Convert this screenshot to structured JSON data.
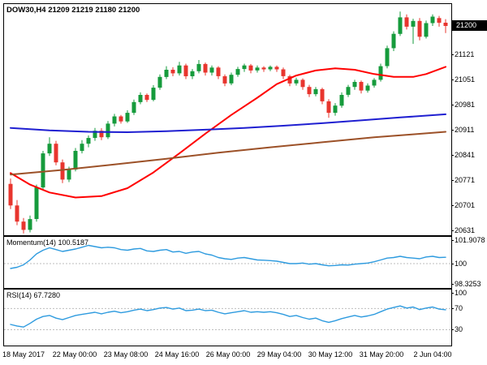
{
  "window": {
    "title": "DOW30,H4 21209 21219 21180 21200",
    "symbol": "DOW30",
    "timeframe": "H4",
    "ohlc": {
      "open": "21209",
      "high": "21219",
      "low": "21180",
      "close": "21200"
    }
  },
  "price_scale": {
    "ticks": [
      "21121",
      "21051",
      "20981",
      "20911",
      "20841",
      "20771",
      "20701",
      "20631"
    ],
    "current": "21200",
    "badge_bg": "#000000",
    "badge_text": "#ffffff"
  },
  "momentum_panel": {
    "label": "Momentum(14) 100.5187"
  },
  "rsi_panel": {
    "label": "RSI(14) 67.7280"
  },
  "chart_data": [
    {
      "type": "candlestick",
      "name": "price",
      "title": "DOW30,H4",
      "ylim": [
        20617,
        21261
      ],
      "y_ticks": [
        21121,
        21051,
        20981,
        20911,
        20841,
        20771,
        20701,
        20631
      ],
      "up_color": "#169b3c",
      "down_color": "#e8352e",
      "x_labels": [
        "18 May 2017",
        "22 May 00:00",
        "23 May 08:00",
        "24 May 16:00",
        "26 May 00:00",
        "29 May 04:00",
        "30 May 12:00",
        "31 May 20:00",
        "2 Jun 04:00"
      ],
      "candles_ohlc": [
        [
          20760,
          20775,
          20690,
          20700
        ],
        [
          20700,
          20715,
          20645,
          20655
        ],
        [
          20655,
          20665,
          20622,
          20632
        ],
        [
          20632,
          20672,
          20625,
          20662
        ],
        [
          20662,
          20758,
          20655,
          20750
        ],
        [
          20750,
          20852,
          20745,
          20845
        ],
        [
          20845,
          20890,
          20838,
          20872
        ],
        [
          20872,
          20880,
          20812,
          20820
        ],
        [
          20820,
          20828,
          20762,
          20772
        ],
        [
          20772,
          20808,
          20765,
          20800
        ],
        [
          20800,
          20860,
          20795,
          20852
        ],
        [
          20852,
          20882,
          20845,
          20872
        ],
        [
          20872,
          20895,
          20862,
          20888
        ],
        [
          20888,
          20916,
          20880,
          20908
        ],
        [
          20908,
          20915,
          20882,
          20890
        ],
        [
          20890,
          20935,
          20885,
          20928
        ],
        [
          20928,
          20955,
          20920,
          20948
        ],
        [
          20948,
          20952,
          20928,
          20934
        ],
        [
          20934,
          20965,
          20930,
          20958
        ],
        [
          20958,
          20995,
          20952,
          20988
        ],
        [
          20988,
          21015,
          20982,
          21008
        ],
        [
          21008,
          21012,
          20988,
          20994
        ],
        [
          20994,
          21035,
          20990,
          21028
        ],
        [
          21028,
          21065,
          21022,
          21058
        ],
        [
          21058,
          21088,
          21052,
          21078
        ],
        [
          21078,
          21085,
          21060,
          21068
        ],
        [
          21068,
          21100,
          21062,
          21090
        ],
        [
          21090,
          21095,
          21052,
          21060
        ],
        [
          21060,
          21080,
          21052,
          21074
        ],
        [
          21074,
          21105,
          21068,
          21094
        ],
        [
          21094,
          21098,
          21062,
          21070
        ],
        [
          21070,
          21090,
          21062,
          21084
        ],
        [
          21084,
          21088,
          21052,
          21060
        ],
        [
          21060,
          21065,
          21032,
          21040
        ],
        [
          21040,
          21070,
          21035,
          21064
        ],
        [
          21064,
          21086,
          21058,
          21080
        ],
        [
          21080,
          21095,
          21072,
          21090
        ],
        [
          21090,
          21094,
          21068,
          21076
        ],
        [
          21076,
          21090,
          21070,
          21084
        ],
        [
          21084,
          21088,
          21072,
          21079
        ],
        [
          21079,
          21090,
          21074,
          21086
        ],
        [
          21086,
          21090,
          21072,
          21079
        ],
        [
          21079,
          21084,
          21052,
          21060
        ],
        [
          21060,
          21064,
          21032,
          21040
        ],
        [
          21040,
          21056,
          21034,
          21050
        ],
        [
          21050,
          21054,
          21022,
          21030
        ],
        [
          21030,
          21036,
          21002,
          21010
        ],
        [
          21010,
          21030,
          21004,
          21024
        ],
        [
          21024,
          21028,
          20982,
          20990
        ],
        [
          20990,
          20996,
          20944,
          20958
        ],
        [
          20958,
          20985,
          20950,
          20978
        ],
        [
          20978,
          21015,
          20972,
          21008
        ],
        [
          21008,
          21036,
          21002,
          21030
        ],
        [
          21030,
          21050,
          21022,
          21044
        ],
        [
          21044,
          21048,
          21012,
          21020
        ],
        [
          21020,
          21040,
          21014,
          21034
        ],
        [
          21034,
          21055,
          21028,
          21050
        ],
        [
          21050,
          21095,
          21045,
          21088
        ],
        [
          21088,
          21145,
          21082,
          21138
        ],
        [
          21138,
          21185,
          21130,
          21178
        ],
        [
          21178,
          21240,
          21172,
          21224
        ],
        [
          21224,
          21232,
          21190,
          21198
        ],
        [
          21198,
          21220,
          21150,
          21214
        ],
        [
          21214,
          21222,
          21160,
          21170
        ],
        [
          21170,
          21215,
          21165,
          21208
        ],
        [
          21208,
          21232,
          21200,
          21226
        ],
        [
          21222,
          21228,
          21198,
          21209
        ],
        [
          21209,
          21219,
          21180,
          21200
        ]
      ],
      "overlays": [
        {
          "name": "ma-fast-red",
          "color": "#ff0000",
          "points": [
            [
              0,
              20790
            ],
            [
              3,
              20758
            ],
            [
              6,
              20736
            ],
            [
              10,
              20722
            ],
            [
              14,
              20726
            ],
            [
              18,
              20748
            ],
            [
              22,
              20792
            ],
            [
              26,
              20845
            ],
            [
              30,
              20900
            ],
            [
              34,
              20952
            ],
            [
              38,
              21000
            ],
            [
              41,
              21038
            ],
            [
              44,
              21062
            ],
            [
              47,
              21076
            ],
            [
              50,
              21082
            ],
            [
              53,
              21078
            ],
            [
              56,
              21066
            ],
            [
              59,
              21058
            ],
            [
              62,
              21058
            ],
            [
              64,
              21066
            ],
            [
              67,
              21086
            ]
          ]
        },
        {
          "name": "ma-slow-blue",
          "color": "#1f1fd1",
          "points": [
            [
              0,
              20916
            ],
            [
              6,
              20909
            ],
            [
              12,
              20905
            ],
            [
              18,
              20904
            ],
            [
              24,
              20907
            ],
            [
              30,
              20911
            ],
            [
              36,
              20916
            ],
            [
              42,
              20922
            ],
            [
              48,
              20929
            ],
            [
              54,
              20937
            ],
            [
              60,
              20945
            ],
            [
              67,
              20954
            ]
          ]
        },
        {
          "name": "ma-long-brown",
          "color": "#9c5128",
          "points": [
            [
              0,
              20786
            ],
            [
              8,
              20799
            ],
            [
              16,
              20814
            ],
            [
              24,
              20830
            ],
            [
              32,
              20847
            ],
            [
              40,
              20862
            ],
            [
              48,
              20876
            ],
            [
              56,
              20890
            ],
            [
              62,
              20898
            ],
            [
              67,
              20905
            ]
          ]
        }
      ]
    },
    {
      "type": "line",
      "name": "momentum",
      "title": "Momentum(14)",
      "current_value": "100.5187",
      "color": "#2e9bdf",
      "ylim": [
        98.0,
        102.2
      ],
      "y_ticks": [
        "101.9078",
        "100",
        "98.3253"
      ],
      "level_lines": [
        100
      ],
      "points": [
        [
          0,
          99.6
        ],
        [
          1,
          99.7
        ],
        [
          2,
          99.9
        ],
        [
          3,
          100.3
        ],
        [
          4,
          100.8
        ],
        [
          5,
          101.1
        ],
        [
          6,
          101.3
        ],
        [
          7,
          101.15
        ],
        [
          8,
          101.0
        ],
        [
          9,
          101.1
        ],
        [
          10,
          101.2
        ],
        [
          11,
          101.35
        ],
        [
          12,
          101.5
        ],
        [
          13,
          101.4
        ],
        [
          14,
          101.3
        ],
        [
          15,
          101.35
        ],
        [
          16,
          101.3
        ],
        [
          17,
          101.15
        ],
        [
          18,
          101.1
        ],
        [
          19,
          101.2
        ],
        [
          20,
          101.25
        ],
        [
          21,
          101.05
        ],
        [
          22,
          101.0
        ],
        [
          23,
          101.1
        ],
        [
          24,
          101.15
        ],
        [
          25,
          100.95
        ],
        [
          26,
          101.0
        ],
        [
          27,
          100.85
        ],
        [
          28,
          100.95
        ],
        [
          29,
          101.0
        ],
        [
          30,
          100.8
        ],
        [
          31,
          100.7
        ],
        [
          32,
          100.5
        ],
        [
          33,
          100.4
        ],
        [
          34,
          100.35
        ],
        [
          35,
          100.45
        ],
        [
          36,
          100.5
        ],
        [
          37,
          100.4
        ],
        [
          38,
          100.3
        ],
        [
          39,
          100.28
        ],
        [
          40,
          100.25
        ],
        [
          41,
          100.2
        ],
        [
          42,
          100.1
        ],
        [
          43,
          100.0
        ],
        [
          44,
          100.0
        ],
        [
          45,
          100.05
        ],
        [
          46,
          99.95
        ],
        [
          47,
          100.0
        ],
        [
          48,
          99.9
        ],
        [
          49,
          99.82
        ],
        [
          50,
          99.85
        ],
        [
          51,
          99.9
        ],
        [
          52,
          99.88
        ],
        [
          53,
          99.95
        ],
        [
          54,
          100.0
        ],
        [
          55,
          100.05
        ],
        [
          56,
          100.15
        ],
        [
          57,
          100.3
        ],
        [
          58,
          100.45
        ],
        [
          59,
          100.5
        ],
        [
          60,
          100.6
        ],
        [
          61,
          100.5
        ],
        [
          62,
          100.45
        ],
        [
          63,
          100.4
        ],
        [
          64,
          100.55
        ],
        [
          65,
          100.6
        ],
        [
          66,
          100.5
        ],
        [
          67,
          100.52
        ]
      ]
    },
    {
      "type": "line",
      "name": "rsi",
      "title": "RSI(14)",
      "current_value": "67.7280",
      "color": "#2e9bdf",
      "ylim": [
        0,
        106
      ],
      "y_ticks": [
        "100",
        "70",
        "30"
      ],
      "level_lines": [
        70,
        30
      ],
      "points": [
        [
          0,
          40
        ],
        [
          1,
          37
        ],
        [
          2,
          35
        ],
        [
          3,
          42
        ],
        [
          4,
          50
        ],
        [
          5,
          55
        ],
        [
          6,
          57
        ],
        [
          7,
          52
        ],
        [
          8,
          49
        ],
        [
          9,
          53
        ],
        [
          10,
          57
        ],
        [
          11,
          59
        ],
        [
          12,
          61
        ],
        [
          13,
          63
        ],
        [
          14,
          60
        ],
        [
          15,
          63
        ],
        [
          16,
          65
        ],
        [
          17,
          62
        ],
        [
          18,
          64
        ],
        [
          19,
          67
        ],
        [
          20,
          69
        ],
        [
          21,
          66
        ],
        [
          22,
          68
        ],
        [
          23,
          71
        ],
        [
          24,
          72
        ],
        [
          25,
          69
        ],
        [
          26,
          71
        ],
        [
          27,
          66
        ],
        [
          28,
          67
        ],
        [
          29,
          69
        ],
        [
          30,
          66
        ],
        [
          31,
          67
        ],
        [
          32,
          63
        ],
        [
          33,
          60
        ],
        [
          34,
          62
        ],
        [
          35,
          64
        ],
        [
          36,
          66
        ],
        [
          37,
          63
        ],
        [
          38,
          64
        ],
        [
          39,
          63
        ],
        [
          40,
          64
        ],
        [
          41,
          62
        ],
        [
          42,
          59
        ],
        [
          43,
          55
        ],
        [
          44,
          57
        ],
        [
          45,
          53
        ],
        [
          46,
          50
        ],
        [
          47,
          52
        ],
        [
          48,
          47
        ],
        [
          49,
          44
        ],
        [
          50,
          47
        ],
        [
          51,
          51
        ],
        [
          52,
          54
        ],
        [
          53,
          57
        ],
        [
          54,
          54
        ],
        [
          55,
          56
        ],
        [
          56,
          59
        ],
        [
          57,
          64
        ],
        [
          58,
          69
        ],
        [
          59,
          72
        ],
        [
          60,
          75
        ],
        [
          61,
          71
        ],
        [
          62,
          73
        ],
        [
          63,
          68
        ],
        [
          64,
          71
        ],
        [
          65,
          73
        ],
        [
          66,
          69
        ],
        [
          67,
          67.7
        ]
      ]
    }
  ]
}
